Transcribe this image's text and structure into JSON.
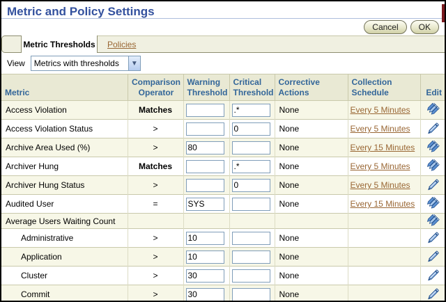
{
  "page": {
    "title": "Metric and Policy Settings"
  },
  "buttons": {
    "cancel": "Cancel",
    "ok": "OK"
  },
  "tabs": {
    "active": "Metric Thresholds",
    "policies": "Policies"
  },
  "view": {
    "label": "View",
    "selected": "Metrics with thresholds"
  },
  "table": {
    "headers": {
      "metric": "Metric",
      "comparison": "Comparison Operator",
      "warning": "Warning Threshold",
      "critical": "Critical Threshold",
      "corrective": "Corrective Actions",
      "collection": "Collection Schedule",
      "edit": "Edit"
    },
    "rows": [
      {
        "metric": "Access Violation",
        "indent": false,
        "operator": "Matches",
        "operator_bold": true,
        "warning": "",
        "critical": ".*",
        "corrective": "None",
        "schedule": "Every 5 Minutes",
        "edit": "multi"
      },
      {
        "metric": "Access Violation Status",
        "indent": false,
        "operator": ">",
        "operator_bold": false,
        "warning": "",
        "critical": "0",
        "corrective": "None",
        "schedule": "Every 5 Minutes",
        "edit": "single"
      },
      {
        "metric": "Archive Area Used (%)",
        "indent": false,
        "operator": ">",
        "operator_bold": false,
        "warning": "80",
        "critical": "",
        "corrective": "None",
        "schedule": "Every 15 Minutes",
        "edit": "multi"
      },
      {
        "metric": "Archiver Hung",
        "indent": false,
        "operator": "Matches",
        "operator_bold": true,
        "warning": "",
        "critical": ".*",
        "corrective": "None",
        "schedule": "Every 5 Minutes",
        "edit": "multi"
      },
      {
        "metric": "Archiver Hung Status",
        "indent": false,
        "operator": ">",
        "operator_bold": false,
        "warning": "",
        "critical": "0",
        "corrective": "None",
        "schedule": "Every 5 Minutes",
        "edit": "single"
      },
      {
        "metric": "Audited User",
        "indent": false,
        "operator": "=",
        "operator_bold": false,
        "warning": "SYS",
        "critical": "",
        "corrective": "None",
        "schedule": "Every 15 Minutes",
        "edit": "multi"
      },
      {
        "metric": "Average Users Waiting Count",
        "indent": false,
        "operator": "",
        "operator_bold": false,
        "warning": null,
        "critical": null,
        "corrective": "",
        "schedule": "",
        "edit": "multi"
      },
      {
        "metric": "Administrative",
        "indent": true,
        "operator": ">",
        "operator_bold": false,
        "warning": "10",
        "critical": "",
        "corrective": "None",
        "schedule": "",
        "edit": "single"
      },
      {
        "metric": "Application",
        "indent": true,
        "operator": ">",
        "operator_bold": false,
        "warning": "10",
        "critical": "",
        "corrective": "None",
        "schedule": "",
        "edit": "single"
      },
      {
        "metric": "Cluster",
        "indent": true,
        "operator": ">",
        "operator_bold": false,
        "warning": "30",
        "critical": "",
        "corrective": "None",
        "schedule": "",
        "edit": "single"
      },
      {
        "metric": "Commit",
        "indent": true,
        "operator": ">",
        "operator_bold": false,
        "warning": "30",
        "critical": "",
        "corrective": "None",
        "schedule": "",
        "edit": "single"
      }
    ]
  },
  "colors": {
    "title_blue": "#33519E",
    "header_blue": "#336699",
    "link_brown": "#996633",
    "row_beige": "#F7F7E7",
    "header_beige": "#E9E9D4",
    "tab_beige": "#F0F0E1",
    "border_tan": "#C9C9AB",
    "input_border": "#7F9DB9",
    "pencil_blue": "#5B8FD0",
    "red_edge": "#7A1A1F"
  }
}
